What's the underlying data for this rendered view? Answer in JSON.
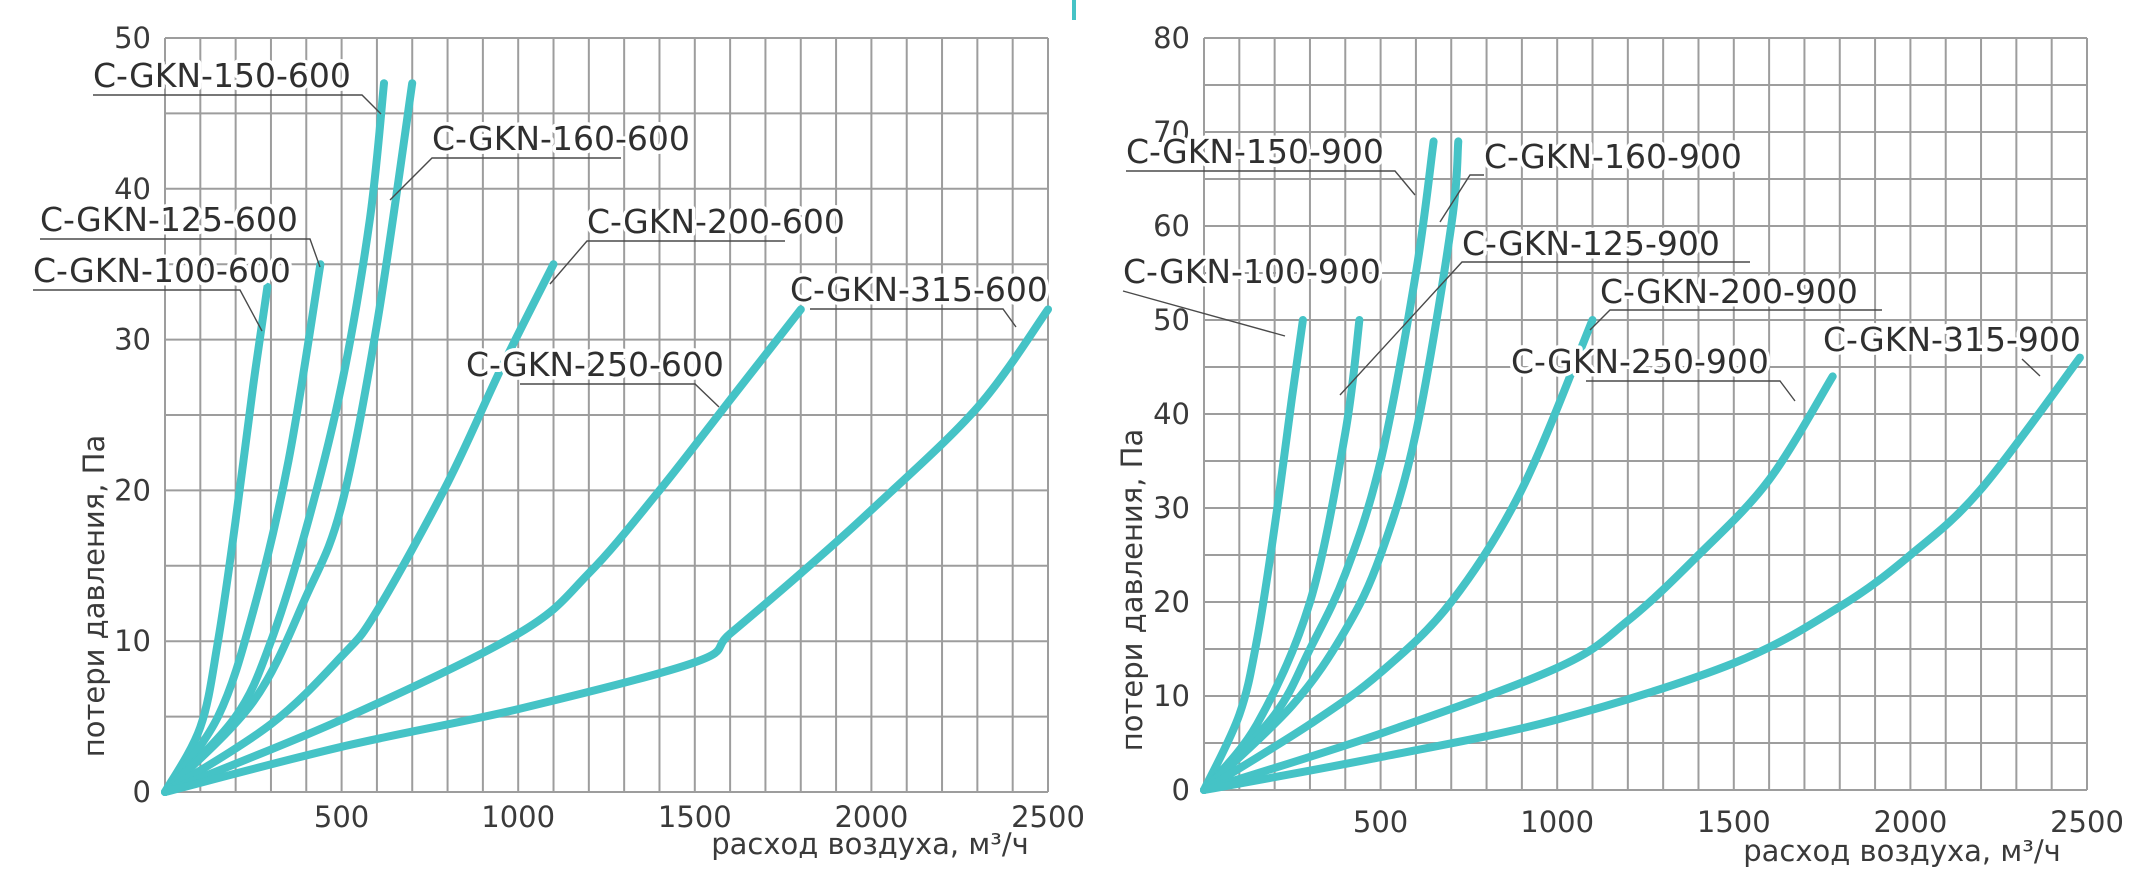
{
  "accent_color": "#45c3c6",
  "chart_data": [
    {
      "type": "line",
      "xlabel": "расход воздуха, м³/ч",
      "ylabel": "потери давления, Па",
      "xlim": [
        0,
        2500
      ],
      "ylim": [
        0,
        50
      ],
      "xticks": [
        500,
        1000,
        1500,
        2000,
        2500
      ],
      "xtick_labels": [
        "500",
        "1000",
        "1500",
        "2000",
        "2500"
      ],
      "yticks": [
        0,
        10,
        20,
        30,
        40,
        50
      ],
      "ytick_labels": [
        "0",
        "10",
        "20",
        "30",
        "40",
        "50"
      ],
      "grid": true,
      "series": [
        {
          "name": "C-GKN-100-600",
          "x": [
            0,
            100,
            150,
            200,
            250,
            290
          ],
          "y": [
            0,
            4.3,
            10,
            18,
            27,
            33.5
          ]
        },
        {
          "name": "C-GKN-125-600",
          "x": [
            0,
            150,
            250,
            350,
            440
          ],
          "y": [
            0,
            5,
            12,
            22,
            35
          ]
        },
        {
          "name": "C-GKN-150-600",
          "x": [
            0,
            200,
            300,
            400,
            500,
            580,
            620
          ],
          "y": [
            0,
            5,
            10,
            17.5,
            27,
            38,
            47
          ]
        },
        {
          "name": "C-GKN-160-600",
          "x": [
            0,
            250,
            400,
            500,
            600,
            700
          ],
          "y": [
            0,
            6,
            13,
            19,
            31,
            47
          ]
        },
        {
          "name": "C-GKN-200-600",
          "x": [
            0,
            300,
            500,
            600,
            800,
            950,
            1100
          ],
          "y": [
            0,
            4.5,
            9,
            12,
            20.5,
            28,
            35
          ]
        },
        {
          "name": "C-GKN-250-600",
          "x": [
            0,
            500,
            1000,
            1200,
            1400,
            1600,
            1800
          ],
          "y": [
            0,
            4.8,
            10.5,
            14.5,
            20,
            26,
            32
          ]
        },
        {
          "name": "C-GKN-315-600",
          "x": [
            0,
            500,
            1000,
            1500,
            1600,
            1800,
            2000,
            2300,
            2500
          ],
          "y": [
            0,
            3,
            5.5,
            8.6,
            10.5,
            14.5,
            18.7,
            25.5,
            32
          ]
        }
      ],
      "labels": [
        {
          "text": "C-GKN-150-600"
        },
        {
          "text": "C-GKN-160-600"
        },
        {
          "text": "C-GKN-125-600"
        },
        {
          "text": "C-GKN-100-600"
        },
        {
          "text": "C-GKN-200-600"
        },
        {
          "text": "C-GKN-250-600"
        },
        {
          "text": "C-GKN-315-600"
        }
      ]
    },
    {
      "type": "line",
      "xlabel": "расход воздуха, м³/ч",
      "ylabel": "потери давления, Па",
      "xlim": [
        0,
        2500
      ],
      "ylim": [
        0,
        80
      ],
      "xticks": [
        500,
        1000,
        1500,
        2000,
        2500
      ],
      "xtick_labels": [
        "500",
        "1000",
        "1500",
        "2000",
        "2500"
      ],
      "yticks": [
        0,
        10,
        20,
        30,
        40,
        50,
        60,
        70,
        80
      ],
      "ytick_labels": [
        "0",
        "10",
        "20",
        "30",
        "40",
        "50",
        "60",
        "70",
        "80"
      ],
      "grid": true,
      "series": [
        {
          "name": "C-GKN-100-900",
          "x": [
            0,
            100,
            150,
            200,
            250,
            280
          ],
          "y": [
            0,
            8,
            16,
            28,
            42,
            50
          ]
        },
        {
          "name": "C-GKN-125-900",
          "x": [
            0,
            150,
            300,
            400,
            440
          ],
          "y": [
            0,
            7,
            20,
            38,
            50
          ]
        },
        {
          "name": "C-GKN-150-900",
          "x": [
            0,
            200,
            300,
            400,
            500,
            600,
            650
          ],
          "y": [
            0,
            8,
            15,
            23,
            35,
            55,
            69
          ]
        },
        {
          "name": "C-GKN-160-900",
          "x": [
            0,
            250,
            400,
            500,
            600,
            700,
            720
          ],
          "y": [
            0,
            9,
            17,
            25,
            38,
            60,
            69
          ]
        },
        {
          "name": "C-GKN-200-900",
          "x": [
            0,
            300,
            500,
            700,
            900,
            1100
          ],
          "y": [
            0,
            7,
            12.5,
            20,
            32,
            50
          ]
        },
        {
          "name": "C-GKN-250-900",
          "x": [
            0,
            500,
            1000,
            1200,
            1400,
            1600,
            1780
          ],
          "y": [
            0,
            6,
            13,
            18,
            25,
            33,
            44
          ]
        },
        {
          "name": "C-GKN-315-900",
          "x": [
            0,
            500,
            1000,
            1500,
            1800,
            2000,
            2200,
            2480
          ],
          "y": [
            0,
            3.5,
            7.5,
            13.5,
            19.5,
            25,
            32,
            46
          ]
        }
      ],
      "labels": [
        {
          "text": "C-GKN-150-900"
        },
        {
          "text": "C-GKN-160-900"
        },
        {
          "text": "C-GKN-125-900"
        },
        {
          "text": "C-GKN-100-900"
        },
        {
          "text": "C-GKN-200-900"
        },
        {
          "text": "C-GKN-250-900"
        },
        {
          "text": "C-GKN-315-900"
        }
      ]
    }
  ]
}
